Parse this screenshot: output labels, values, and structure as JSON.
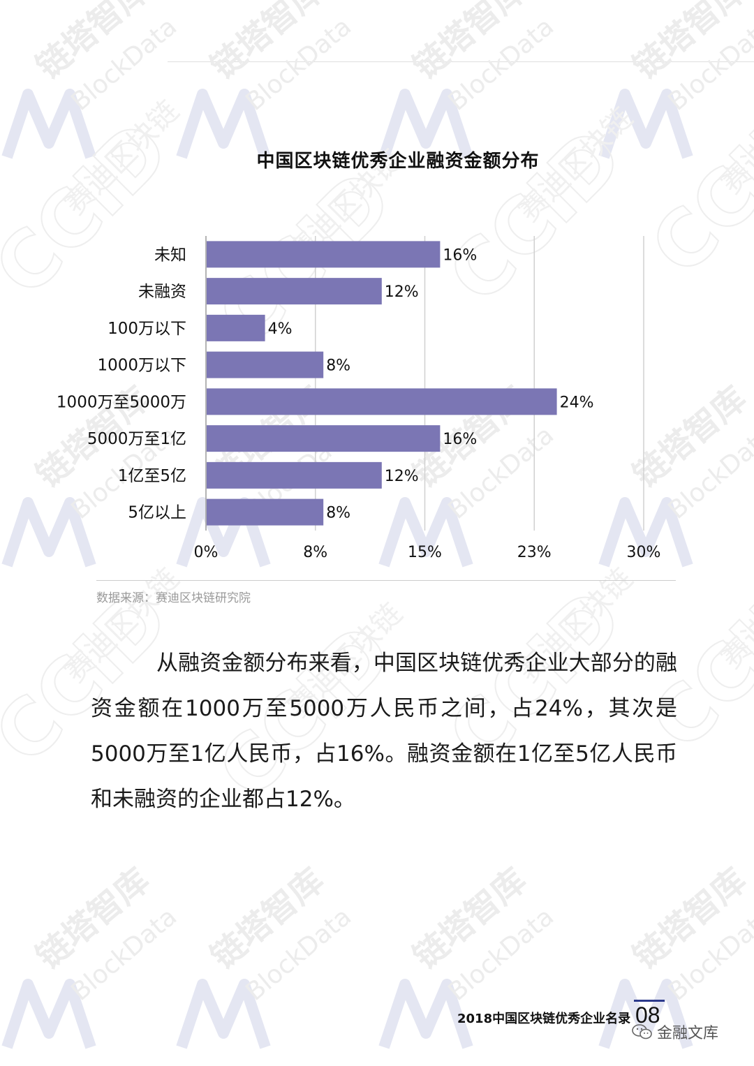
{
  "watermarks": {
    "brand_cn": "链塔智库",
    "brand_en": "BlockData",
    "ccid_cn": "赛迪区块链",
    "ccid_en": "CCID"
  },
  "colors": {
    "bar": "#7b76b4",
    "grid": "#d0d0d0",
    "axis_text": "#111111"
  },
  "chart_data": {
    "type": "bar",
    "orientation": "horizontal",
    "title": "中国区块链优秀企业融资金额分布",
    "categories": [
      "未知",
      "未融资",
      "100万以下",
      "1000万以下",
      "1000万至5000万",
      "5000万至1亿",
      "1亿至5亿",
      "5亿以上"
    ],
    "values": [
      16,
      12,
      4,
      8,
      24,
      16,
      12,
      8
    ],
    "value_labels": [
      "16%",
      "12%",
      "4%",
      "8%",
      "24%",
      "16%",
      "12%",
      "8%"
    ],
    "xlim": [
      0,
      30
    ],
    "xticks": [
      0,
      7.5,
      15,
      22.5,
      30
    ],
    "xtick_labels": [
      "0%",
      "8%",
      "15%",
      "23%",
      "30%"
    ],
    "grid": true,
    "legend": "none"
  },
  "source": "数据来源：赛迪区块链研究院",
  "body_text": "从融资金额分布来看，中国区块链优秀企业大部分的融资金额在1000万至5000万人民币之间，占24%，其次是5000万至1亿人民币，占16%。融资金额在1亿至5亿人民币和未融资的企业都占12%。",
  "footer": {
    "report_title": "2018中国区块链优秀企业名录",
    "page_number": "08",
    "brand": "金融文库"
  }
}
